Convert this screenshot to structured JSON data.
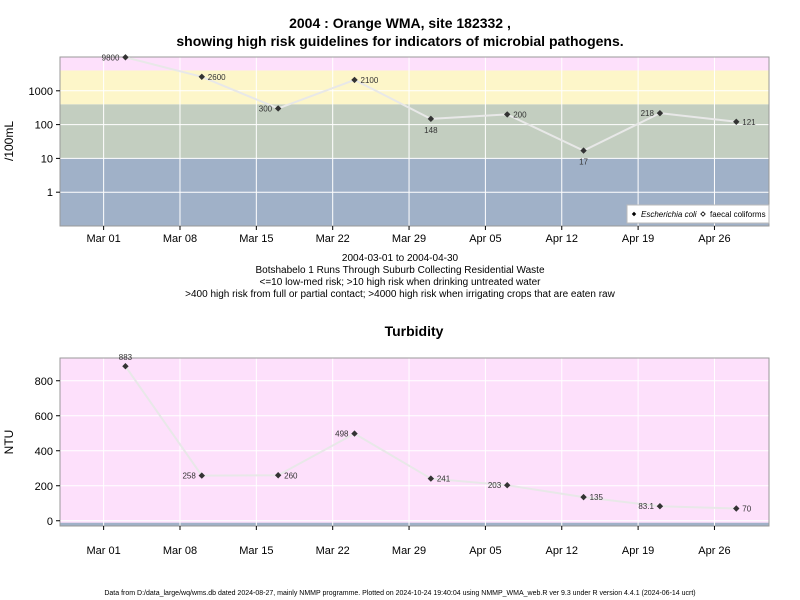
{
  "title_line1": "2004 : Orange WMA, site 182332 ,",
  "title_line2": "showing high risk guidelines for indicators of microbial pathogens.",
  "date_range": "2004-03-01 to 2004-04-30",
  "site_description": "Botshabelo 1 Runs Through Suburb Collecting Residential Waste",
  "guideline_1": "<=10 low-med risk; >10 high risk when drinking untreated water",
  "guideline_2": ">400 high risk from full or partial contact; >4000 high risk when irrigating crops that are eaten raw",
  "footer": "Data from D:/data_large/wq/wms.db dated 2024-08-27, mainly NMMP programme. Plotted on 2024-10-24 19:40:04 using NMMP_WMA_web.R ver 9.3 under R version 4.4.1 (2024-06-14 ucrt)",
  "colors": {
    "band_low": "#a0b1c8",
    "band_mid": "#c3cec0",
    "band_high": "#fdf6c9",
    "band_top": "#fde0fb",
    "line": "#e8e8e8",
    "marker": "#333333"
  },
  "chart_data": [
    {
      "type": "line",
      "title": "",
      "ylabel": "/100mL",
      "yscale": "log",
      "ylim": [
        0.1,
        10000
      ],
      "yticks": [
        "1",
        "10",
        "100",
        "1000"
      ],
      "xlim": [
        "2004-02-26",
        "2004-05-01"
      ],
      "xticks": [
        "Mar 01",
        "Mar 08",
        "Mar 15",
        "Mar 22",
        "Mar 29",
        "Apr 05",
        "Apr 12",
        "Apr 19",
        "Apr 26"
      ],
      "bands": [
        10,
        400,
        4000
      ],
      "legend": [
        "Escherichia coli",
        "faecal coliforms"
      ],
      "legend_position": "bottom-right",
      "grid": true,
      "x": [
        "2004-03-03",
        "2004-03-10",
        "2004-03-17",
        "2004-03-24",
        "2004-03-31",
        "2004-04-07",
        "2004-04-14",
        "2004-04-21",
        "2004-04-28"
      ],
      "series": [
        {
          "name": "Escherichia coli",
          "values": [
            9800,
            2600,
            300,
            2100,
            148,
            200,
            17,
            218,
            121
          ],
          "labels": [
            "9800",
            "2600",
            "300",
            "2100",
            "148",
            "200",
            "17",
            "218",
            "121"
          ]
        }
      ]
    },
    {
      "type": "line",
      "title": "Turbidity",
      "ylabel": "NTU",
      "ylim": [
        -30,
        930
      ],
      "yticks": [
        "0",
        "200",
        "400",
        "600",
        "800"
      ],
      "xlim": [
        "2004-02-26",
        "2004-05-01"
      ],
      "xticks": [
        "Mar 01",
        "Mar 08",
        "Mar 15",
        "Mar 22",
        "Mar 29",
        "Apr 05",
        "Apr 12",
        "Apr 19",
        "Apr 26"
      ],
      "grid": true,
      "x": [
        "2004-03-03",
        "2004-03-10",
        "2004-03-17",
        "2004-03-24",
        "2004-03-31",
        "2004-04-07",
        "2004-04-14",
        "2004-04-21",
        "2004-04-28"
      ],
      "series": [
        {
          "values": [
            883,
            258,
            260,
            498,
            241,
            203,
            135,
            83.1,
            70
          ],
          "labels": [
            "883",
            "258",
            "260",
            "498",
            "241",
            "203",
            "135",
            "83.1",
            "70"
          ]
        }
      ]
    }
  ]
}
